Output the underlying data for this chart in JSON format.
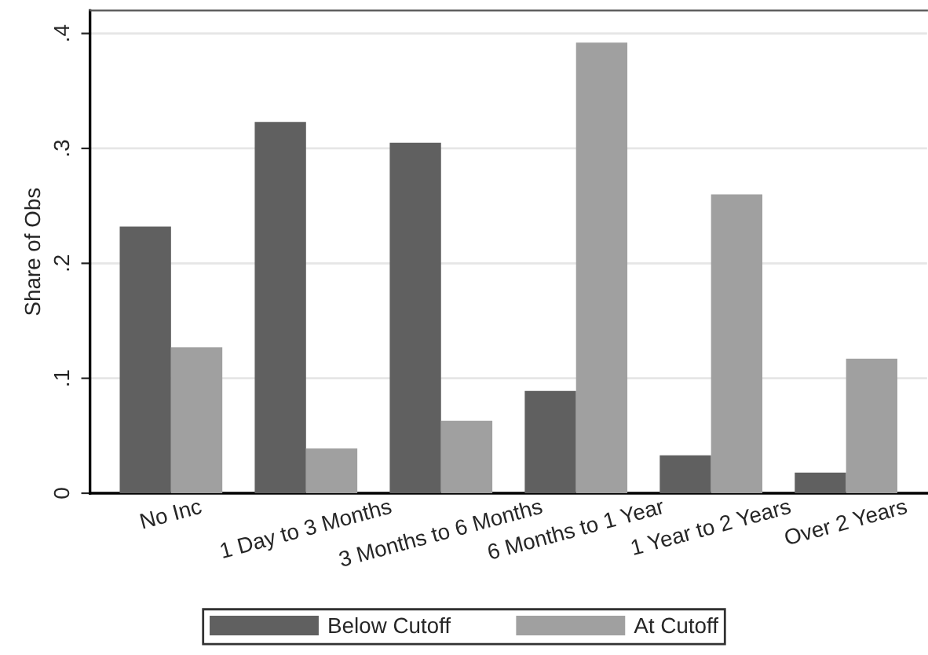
{
  "chart_data": {
    "type": "bar",
    "ylabel": "Share of Obs",
    "categories": [
      "No Inc",
      "1 Day to 3 Months",
      "3 Months to 6 Months",
      "6 Months to 1 Year",
      "1 Year to 2 Years",
      "Over 2 Years"
    ],
    "series": [
      {
        "name": "Below Cutoff",
        "color": "#606060",
        "values": [
          0.232,
          0.323,
          0.305,
          0.089,
          0.033,
          0.018
        ]
      },
      {
        "name": "At Cutoff",
        "color": "#a0a0a0",
        "values": [
          0.127,
          0.039,
          0.063,
          0.392,
          0.26,
          0.117
        ]
      }
    ],
    "ylim": [
      0,
      0.42
    ],
    "yticks": [
      {
        "value": 0,
        "label": "0"
      },
      {
        "value": 0.1,
        "label": ".1"
      },
      {
        "value": 0.2,
        "label": ".2"
      },
      {
        "value": 0.3,
        "label": ".3"
      },
      {
        "value": 0.4,
        "label": ".4"
      }
    ],
    "grid": "y",
    "legend": "bottom"
  }
}
